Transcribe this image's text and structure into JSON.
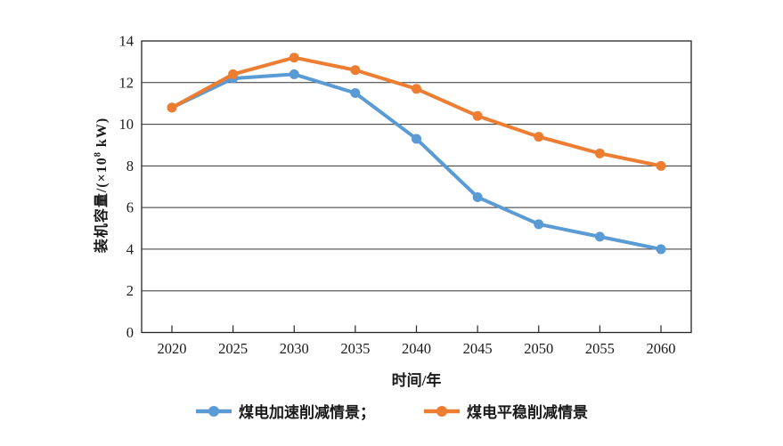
{
  "chart_data": {
    "type": "line",
    "title": "",
    "categories": [
      "2020",
      "2025",
      "2030",
      "2035",
      "2040",
      "2045",
      "2050",
      "2055",
      "2060"
    ],
    "series": [
      {
        "name": "coal-accelerated-reduction",
        "legend_label": "煤电加速削减情景；",
        "color": "#5B9BD5",
        "values": [
          10.8,
          12.2,
          12.4,
          11.5,
          9.3,
          6.5,
          5.2,
          4.6,
          4.0
        ]
      },
      {
        "name": "coal-steady-reduction",
        "legend_label": "煤电平稳削减情景",
        "color": "#ED7D31",
        "values": [
          10.8,
          12.4,
          13.2,
          12.6,
          11.7,
          10.4,
          9.4,
          8.6,
          8.0
        ]
      }
    ],
    "xlabel": "时间/年",
    "ylabel": "装机容量/(×10⁸ kW)",
    "ylabel_parts": {
      "prefix": "装机容量/(×10",
      "sup": "8",
      "suffix": " kW)"
    },
    "ylim": [
      0,
      14
    ],
    "ytick_step": 2,
    "yticks": [
      "0",
      "2",
      "4",
      "6",
      "8",
      "10",
      "12",
      "14"
    ],
    "grid": "horizontal",
    "legend_position": "bottom",
    "axis_color": "#262626",
    "grid_color": "#333333",
    "background": "#ffffff"
  }
}
